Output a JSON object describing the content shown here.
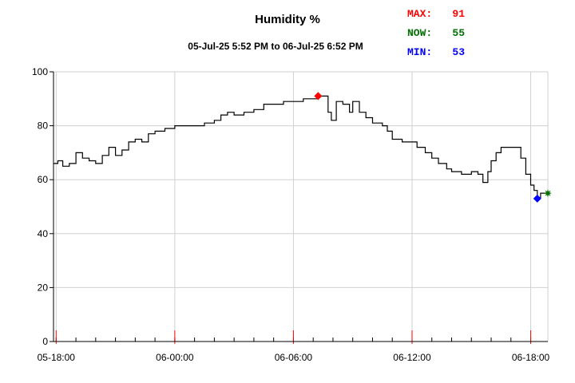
{
  "chart_data": {
    "type": "line",
    "title": "Humidity %",
    "subtitle": "05-Jul-25 5:52 PM to 06-Jul-25 6:52 PM",
    "xlabel": "",
    "ylabel": "",
    "xlim": [
      "05-Jul-25 17:52",
      "06-Jul-25 18:52"
    ],
    "ylim": [
      0,
      100
    ],
    "y_ticks": [
      0,
      20,
      40,
      60,
      80,
      100
    ],
    "x_ticks": [
      {
        "t": "05-Jul-25 18:00",
        "label": "05-18:00"
      },
      {
        "t": "06-Jul-25 00:00",
        "label": "06-00:00"
      },
      {
        "t": "06-Jul-25 06:00",
        "label": "06-06:00"
      },
      {
        "t": "06-Jul-25 12:00",
        "label": "06-12:00"
      },
      {
        "t": "06-Jul-25 18:00",
        "label": "06-18:00"
      }
    ],
    "grid": true,
    "legend": "none",
    "series": [
      {
        "color": "#000000",
        "points": [
          [
            "05-Jul-25 17:52",
            66
          ],
          [
            "05-Jul-25 18:05",
            67
          ],
          [
            "05-Jul-25 18:20",
            65
          ],
          [
            "05-Jul-25 18:40",
            66
          ],
          [
            "05-Jul-25 19:00",
            70
          ],
          [
            "05-Jul-25 19:20",
            68
          ],
          [
            "05-Jul-25 19:40",
            67
          ],
          [
            "05-Jul-25 20:00",
            66
          ],
          [
            "05-Jul-25 20:20",
            69
          ],
          [
            "05-Jul-25 20:40",
            72
          ],
          [
            "05-Jul-25 21:00",
            69
          ],
          [
            "05-Jul-25 21:20",
            71
          ],
          [
            "05-Jul-25 21:40",
            74
          ],
          [
            "05-Jul-25 22:00",
            75
          ],
          [
            "05-Jul-25 22:20",
            74
          ],
          [
            "05-Jul-25 22:40",
            77
          ],
          [
            "05-Jul-25 23:00",
            78
          ],
          [
            "05-Jul-25 23:30",
            79
          ],
          [
            "06-Jul-25 00:00",
            80
          ],
          [
            "06-Jul-25 00:30",
            80
          ],
          [
            "06-Jul-25 01:00",
            80
          ],
          [
            "06-Jul-25 01:30",
            81
          ],
          [
            "06-Jul-25 02:00",
            82
          ],
          [
            "06-Jul-25 02:20",
            84
          ],
          [
            "06-Jul-25 02:40",
            85
          ],
          [
            "06-Jul-25 03:00",
            84
          ],
          [
            "06-Jul-25 03:30",
            85
          ],
          [
            "06-Jul-25 04:00",
            86
          ],
          [
            "06-Jul-25 04:30",
            88
          ],
          [
            "06-Jul-25 05:00",
            88
          ],
          [
            "06-Jul-25 05:30",
            89
          ],
          [
            "06-Jul-25 06:00",
            89
          ],
          [
            "06-Jul-25 06:30",
            90
          ],
          [
            "06-Jul-25 07:00",
            90
          ],
          [
            "06-Jul-25 07:15",
            91
          ],
          [
            "06-Jul-25 07:35",
            91
          ],
          [
            "06-Jul-25 07:45",
            85
          ],
          [
            "06-Jul-25 07:55",
            82
          ],
          [
            "06-Jul-25 08:10",
            89
          ],
          [
            "06-Jul-25 08:30",
            88
          ],
          [
            "06-Jul-25 08:50",
            85
          ],
          [
            "06-Jul-25 09:00",
            89
          ],
          [
            "06-Jul-25 09:20",
            85
          ],
          [
            "06-Jul-25 09:40",
            83
          ],
          [
            "06-Jul-25 10:00",
            81
          ],
          [
            "06-Jul-25 10:30",
            80
          ],
          [
            "06-Jul-25 10:45",
            78
          ],
          [
            "06-Jul-25 11:00",
            75
          ],
          [
            "06-Jul-25 11:30",
            74
          ],
          [
            "06-Jul-25 12:00",
            74
          ],
          [
            "06-Jul-25 12:15",
            72
          ],
          [
            "06-Jul-25 12:40",
            70
          ],
          [
            "06-Jul-25 13:00",
            68
          ],
          [
            "06-Jul-25 13:20",
            66
          ],
          [
            "06-Jul-25 13:45",
            64
          ],
          [
            "06-Jul-25 14:00",
            63
          ],
          [
            "06-Jul-25 14:30",
            62
          ],
          [
            "06-Jul-25 15:00",
            63
          ],
          [
            "06-Jul-25 15:20",
            62
          ],
          [
            "06-Jul-25 15:35",
            59
          ],
          [
            "06-Jul-25 15:50",
            63
          ],
          [
            "06-Jul-25 16:00",
            67
          ],
          [
            "06-Jul-25 16:15",
            70
          ],
          [
            "06-Jul-25 16:30",
            72
          ],
          [
            "06-Jul-25 17:00",
            72
          ],
          [
            "06-Jul-25 17:15",
            72
          ],
          [
            "06-Jul-25 17:30",
            68
          ],
          [
            "06-Jul-25 17:45",
            62
          ],
          [
            "06-Jul-25 18:00",
            58
          ],
          [
            "06-Jul-25 18:10",
            56
          ],
          [
            "06-Jul-25 18:20",
            53
          ],
          [
            "06-Jul-25 18:30",
            55
          ],
          [
            "06-Jul-25 18:52",
            55
          ]
        ]
      }
    ],
    "markers": [
      {
        "label": "MAX:",
        "value": "91",
        "t": "06-Jul-25 07:15",
        "y": 91,
        "color": "#ff0000",
        "shape": "diamond"
      },
      {
        "label": "NOW:",
        "value": "55",
        "t": "06-Jul-25 18:52",
        "y": 55,
        "color": "#007000",
        "shape": "star"
      },
      {
        "label": "MIN:",
        "value": "53",
        "t": "06-Jul-25 18:20",
        "y": 53,
        "color": "#0000ff",
        "shape": "diamond"
      }
    ]
  }
}
